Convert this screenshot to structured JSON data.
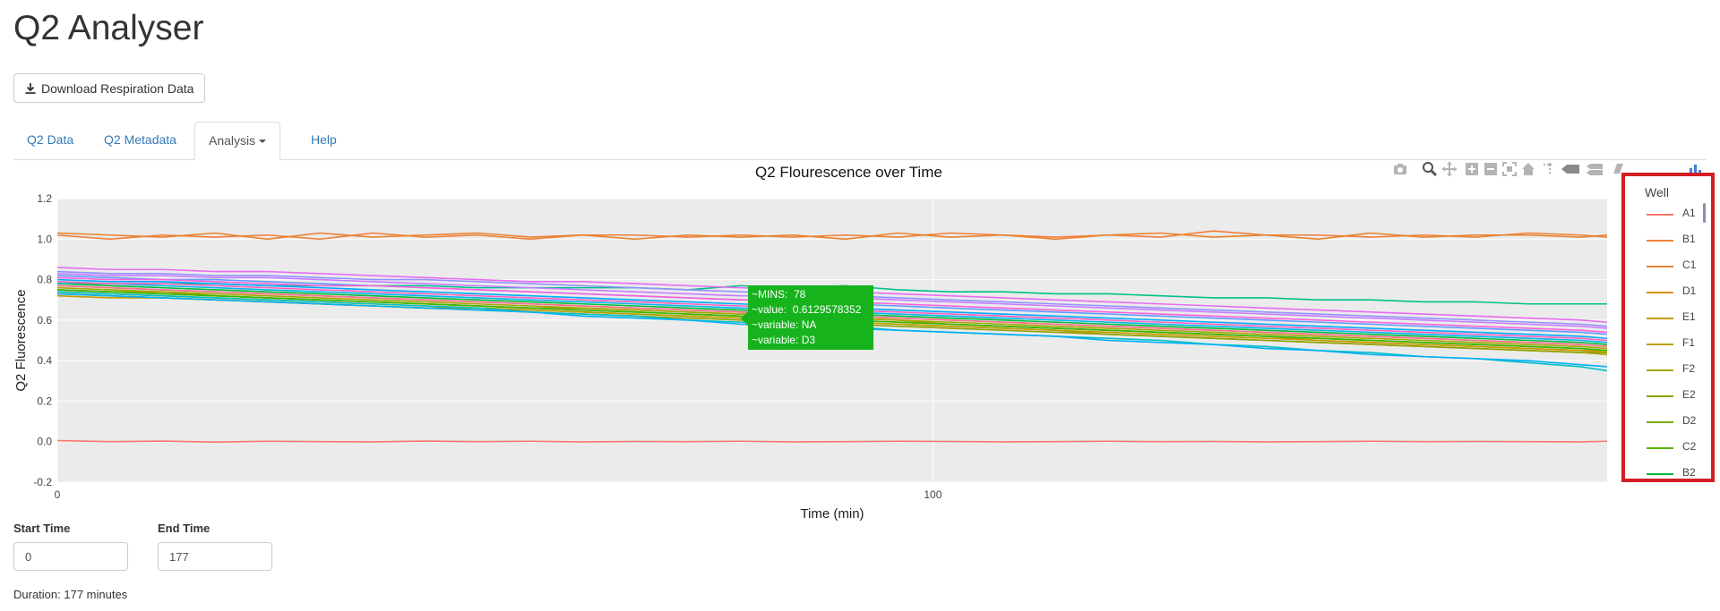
{
  "app": {
    "title": "Q2 Analyser"
  },
  "download_button": {
    "label": "Download Respiration Data",
    "icon": "download-icon"
  },
  "tabs": [
    {
      "label": "Q2 Data",
      "active": false
    },
    {
      "label": "Q2 Metadata",
      "active": false
    },
    {
      "label": "Analysis",
      "active": true,
      "dropdown": true
    },
    {
      "label": "Help",
      "active": false
    }
  ],
  "modebar": [
    "camera-icon",
    "zoom-icon",
    "pan-icon",
    "zoom-in-icon",
    "zoom-out-icon",
    "autoscale-icon",
    "reset-axes-icon",
    "spike-lines-icon",
    "hover-closest-icon",
    "hover-compare-icon",
    "toggle-sidebar-icon",
    "plotly-logo-icon"
  ],
  "chart_data": {
    "type": "line",
    "title": "Q2 Flourescence over Time",
    "xlabel": "Time (min)",
    "ylabel": "Q2 Fluorescence",
    "xlim": [
      0,
      177
    ],
    "ylim": [
      -0.2,
      1.2
    ],
    "x_ticks": [
      "0",
      "100"
    ],
    "y_ticks": [
      "-0.2",
      "0.0",
      "0.2",
      "0.4",
      "0.6",
      "0.8",
      "1.0",
      "1.2"
    ],
    "grid": true,
    "legend_position": "right",
    "legend_title": "Well",
    "x": [
      0,
      6,
      12,
      18,
      24,
      30,
      36,
      42,
      48,
      54,
      60,
      66,
      72,
      78,
      84,
      90,
      96,
      102,
      108,
      114,
      120,
      126,
      132,
      138,
      144,
      150,
      156,
      162,
      168,
      174,
      177
    ],
    "series": [
      {
        "name": "A1",
        "color": "#f8766d",
        "values": [
          0.005,
          0.0,
          0.003,
          -0.002,
          0.002,
          0.0,
          -0.001,
          0.003,
          0.0,
          0.002,
          -0.001,
          0.001,
          0.0,
          0.002,
          -0.001,
          0.0,
          0.002,
          0.001,
          -0.001,
          0.0,
          0.002,
          0.0,
          0.001,
          -0.001,
          0.0,
          0.002,
          0.0,
          0.001,
          0.0,
          -0.001,
          0.002
        ]
      },
      {
        "name": "B1",
        "color": "#f07f3a",
        "values": [
          1.02,
          1.0,
          1.02,
          1.01,
          1.02,
          1.0,
          1.03,
          1.01,
          1.02,
          1.0,
          1.02,
          1.02,
          1.01,
          1.02,
          1.01,
          1.02,
          1.01,
          1.03,
          1.02,
          1.01,
          1.02,
          1.01,
          1.04,
          1.02,
          1.02,
          1.01,
          1.02,
          1.01,
          1.03,
          1.02,
          1.01
        ]
      },
      {
        "name": "C1",
        "color": "#e8822e",
        "values": [
          1.03,
          1.02,
          1.01,
          1.03,
          1.0,
          1.03,
          1.01,
          1.02,
          1.03,
          1.01,
          1.02,
          1.0,
          1.02,
          1.01,
          1.02,
          1.0,
          1.03,
          1.01,
          1.02,
          1.0,
          1.02,
          1.03,
          1.01,
          1.02,
          1.0,
          1.03,
          1.01,
          1.02,
          1.02,
          1.01,
          1.02
        ]
      },
      {
        "name": "D1",
        "color": "#d89000",
        "values": [
          0.75,
          0.74,
          0.74,
          0.72,
          0.71,
          0.7,
          0.69,
          0.68,
          0.67,
          0.66,
          0.66,
          0.65,
          0.64,
          0.63,
          0.62,
          0.61,
          0.6,
          0.58,
          0.57,
          0.56,
          0.55,
          0.54,
          0.53,
          0.52,
          0.5,
          0.49,
          0.48,
          0.47,
          0.46,
          0.45,
          0.44
        ]
      },
      {
        "name": "E1",
        "color": "#c49a00",
        "values": [
          0.72,
          0.71,
          0.71,
          0.7,
          0.69,
          0.68,
          0.67,
          0.66,
          0.66,
          0.65,
          0.64,
          0.63,
          0.62,
          0.61,
          0.6,
          0.59,
          0.58,
          0.57,
          0.56,
          0.55,
          0.54,
          0.53,
          0.52,
          0.51,
          0.5,
          0.49,
          0.48,
          0.47,
          0.46,
          0.45,
          0.45
        ]
      },
      {
        "name": "F1",
        "color": "#b79f00",
        "values": [
          0.74,
          0.73,
          0.72,
          0.71,
          0.7,
          0.69,
          0.68,
          0.67,
          0.66,
          0.65,
          0.64,
          0.63,
          0.62,
          0.61,
          0.6,
          0.59,
          0.58,
          0.57,
          0.56,
          0.55,
          0.53,
          0.52,
          0.51,
          0.5,
          0.49,
          0.48,
          0.47,
          0.46,
          0.45,
          0.44,
          0.43
        ]
      },
      {
        "name": "F2",
        "color": "#a3a500",
        "values": [
          0.76,
          0.75,
          0.74,
          0.73,
          0.72,
          0.71,
          0.7,
          0.69,
          0.68,
          0.67,
          0.66,
          0.65,
          0.64,
          0.63,
          0.62,
          0.61,
          0.6,
          0.59,
          0.58,
          0.57,
          0.56,
          0.55,
          0.54,
          0.53,
          0.52,
          0.51,
          0.5,
          0.49,
          0.48,
          0.47,
          0.46
        ]
      },
      {
        "name": "E2",
        "color": "#8fa100",
        "values": [
          0.73,
          0.72,
          0.71,
          0.7,
          0.69,
          0.68,
          0.67,
          0.66,
          0.65,
          0.64,
          0.63,
          0.62,
          0.61,
          0.6,
          0.59,
          0.58,
          0.57,
          0.56,
          0.55,
          0.54,
          0.53,
          0.52,
          0.51,
          0.5,
          0.49,
          0.48,
          0.47,
          0.46,
          0.45,
          0.44,
          0.44
        ]
      },
      {
        "name": "D2",
        "color": "#7cae00",
        "values": [
          0.77,
          0.76,
          0.75,
          0.74,
          0.73,
          0.72,
          0.71,
          0.7,
          0.69,
          0.68,
          0.67,
          0.66,
          0.65,
          0.64,
          0.63,
          0.62,
          0.61,
          0.6,
          0.59,
          0.58,
          0.57,
          0.56,
          0.55,
          0.54,
          0.53,
          0.52,
          0.51,
          0.5,
          0.49,
          0.48,
          0.47
        ]
      },
      {
        "name": "C2",
        "color": "#5bb300",
        "values": [
          0.75,
          0.74,
          0.73,
          0.72,
          0.71,
          0.7,
          0.69,
          0.68,
          0.67,
          0.66,
          0.65,
          0.64,
          0.63,
          0.62,
          0.61,
          0.6,
          0.59,
          0.58,
          0.57,
          0.56,
          0.55,
          0.54,
          0.53,
          0.52,
          0.51,
          0.5,
          0.49,
          0.48,
          0.47,
          0.46,
          0.45
        ]
      },
      {
        "name": "B2",
        "color": "#00ba38",
        "values": [
          0.78,
          0.77,
          0.76,
          0.75,
          0.74,
          0.73,
          0.72,
          0.71,
          0.7,
          0.69,
          0.68,
          0.67,
          0.66,
          0.65,
          0.64,
          0.63,
          0.62,
          0.61,
          0.6,
          0.59,
          0.58,
          0.57,
          0.56,
          0.55,
          0.54,
          0.53,
          0.52,
          0.51,
          0.5,
          0.49,
          0.48
        ]
      },
      {
        "name": "",
        "color": "#00c08b",
        "values": [
          0.78,
          0.78,
          0.78,
          0.78,
          0.77,
          0.77,
          0.77,
          0.77,
          0.76,
          0.76,
          0.76,
          0.76,
          0.75,
          0.77,
          0.76,
          0.77,
          0.75,
          0.74,
          0.74,
          0.73,
          0.73,
          0.72,
          0.71,
          0.71,
          0.7,
          0.7,
          0.69,
          0.69,
          0.68,
          0.68,
          0.68
        ]
      },
      {
        "name": "",
        "color": "#00bfc4",
        "values": [
          0.74,
          0.73,
          0.72,
          0.71,
          0.7,
          0.69,
          0.68,
          0.67,
          0.66,
          0.64,
          0.63,
          0.62,
          0.6,
          0.59,
          0.58,
          0.57,
          0.55,
          0.54,
          0.53,
          0.52,
          0.51,
          0.5,
          0.48,
          0.47,
          0.45,
          0.44,
          0.42,
          0.41,
          0.39,
          0.37,
          0.35
        ]
      },
      {
        "name": "",
        "color": "#00b4f0",
        "values": [
          0.79,
          0.78,
          0.77,
          0.76,
          0.75,
          0.74,
          0.73,
          0.72,
          0.71,
          0.7,
          0.69,
          0.68,
          0.67,
          0.66,
          0.65,
          0.64,
          0.63,
          0.62,
          0.61,
          0.6,
          0.59,
          0.58,
          0.57,
          0.56,
          0.55,
          0.54,
          0.53,
          0.52,
          0.51,
          0.5,
          0.49
        ]
      },
      {
        "name": "",
        "color": "#00a9ff",
        "values": [
          0.8,
          0.79,
          0.79,
          0.78,
          0.77,
          0.76,
          0.75,
          0.74,
          0.73,
          0.72,
          0.71,
          0.7,
          0.69,
          0.68,
          0.67,
          0.66,
          0.65,
          0.64,
          0.63,
          0.62,
          0.61,
          0.6,
          0.59,
          0.58,
          0.57,
          0.56,
          0.55,
          0.54,
          0.53,
          0.52,
          0.51
        ]
      },
      {
        "name": "",
        "color": "#619cff",
        "values": [
          0.82,
          0.81,
          0.8,
          0.8,
          0.79,
          0.78,
          0.77,
          0.76,
          0.75,
          0.74,
          0.73,
          0.72,
          0.71,
          0.7,
          0.69,
          0.68,
          0.67,
          0.66,
          0.65,
          0.64,
          0.63,
          0.62,
          0.61,
          0.6,
          0.59,
          0.58,
          0.57,
          0.56,
          0.55,
          0.54,
          0.53
        ]
      },
      {
        "name": "",
        "color": "#9590ff",
        "values": [
          0.84,
          0.83,
          0.83,
          0.82,
          0.82,
          0.81,
          0.8,
          0.8,
          0.79,
          0.78,
          0.77,
          0.76,
          0.75,
          0.74,
          0.73,
          0.72,
          0.71,
          0.7,
          0.69,
          0.68,
          0.67,
          0.66,
          0.65,
          0.64,
          0.63,
          0.62,
          0.61,
          0.6,
          0.59,
          0.58,
          0.57
        ]
      },
      {
        "name": "",
        "color": "#c77cff",
        "values": [
          0.83,
          0.82,
          0.82,
          0.81,
          0.81,
          0.8,
          0.79,
          0.78,
          0.77,
          0.76,
          0.75,
          0.74,
          0.73,
          0.72,
          0.72,
          0.71,
          0.7,
          0.69,
          0.68,
          0.67,
          0.66,
          0.65,
          0.64,
          0.63,
          0.62,
          0.61,
          0.6,
          0.59,
          0.58,
          0.57,
          0.56
        ]
      },
      {
        "name": "",
        "color": "#e76bf3",
        "values": [
          0.86,
          0.85,
          0.85,
          0.84,
          0.84,
          0.83,
          0.82,
          0.81,
          0.8,
          0.79,
          0.79,
          0.78,
          0.77,
          0.76,
          0.75,
          0.74,
          0.73,
          0.72,
          0.71,
          0.7,
          0.69,
          0.68,
          0.67,
          0.66,
          0.65,
          0.64,
          0.63,
          0.62,
          0.61,
          0.6,
          0.59
        ]
      },
      {
        "name": "",
        "color": "#fa62db",
        "values": [
          0.81,
          0.8,
          0.8,
          0.79,
          0.78,
          0.77,
          0.77,
          0.76,
          0.75,
          0.74,
          0.73,
          0.72,
          0.71,
          0.7,
          0.7,
          0.69,
          0.68,
          0.67,
          0.66,
          0.65,
          0.64,
          0.63,
          0.62,
          0.61,
          0.6,
          0.59,
          0.58,
          0.57,
          0.56,
          0.55,
          0.54
        ]
      },
      {
        "name": "",
        "color": "#ff62bc",
        "values": [
          0.79,
          0.78,
          0.78,
          0.77,
          0.76,
          0.75,
          0.74,
          0.73,
          0.72,
          0.71,
          0.7,
          0.69,
          0.68,
          0.67,
          0.66,
          0.65,
          0.64,
          0.63,
          0.62,
          0.61,
          0.6,
          0.59,
          0.58,
          0.57,
          0.56,
          0.55,
          0.54,
          0.53,
          0.52,
          0.51,
          0.5
        ]
      },
      {
        "name": "",
        "color": "#ff6c91",
        "values": [
          0.77,
          0.76,
          0.75,
          0.74,
          0.73,
          0.72,
          0.71,
          0.7,
          0.69,
          0.68,
          0.67,
          0.66,
          0.65,
          0.64,
          0.63,
          0.62,
          0.61,
          0.6,
          0.59,
          0.58,
          0.57,
          0.56,
          0.55,
          0.54,
          0.53,
          0.52,
          0.51,
          0.5,
          0.49,
          0.48,
          0.47
        ]
      },
      {
        "name": "",
        "color": "#00b0f6",
        "values": [
          0.73,
          0.72,
          0.71,
          0.7,
          0.69,
          0.68,
          0.67,
          0.66,
          0.65,
          0.64,
          0.62,
          0.61,
          0.6,
          0.58,
          0.57,
          0.56,
          0.55,
          0.54,
          0.53,
          0.52,
          0.5,
          0.49,
          0.48,
          0.46,
          0.45,
          0.43,
          0.42,
          0.41,
          0.4,
          0.38,
          0.37
        ]
      },
      {
        "name": "",
        "color": "#39b600",
        "values": [
          0.75,
          0.74,
          0.73,
          0.72,
          0.71,
          0.7,
          0.69,
          0.68,
          0.67,
          0.66,
          0.65,
          0.64,
          0.63,
          0.62,
          0.61,
          0.6,
          0.59,
          0.58,
          0.57,
          0.56,
          0.55,
          0.54,
          0.53,
          0.52,
          0.51,
          0.5,
          0.49,
          0.48,
          0.47,
          0.46,
          0.45
        ]
      }
    ],
    "tooltip": {
      "text": "~MINS:  78\n~value:  0.6129578352\n~variable: NA\n~variable: D3",
      "x": 78,
      "y": 0.6129578352,
      "color": "#16b31c"
    }
  },
  "inputs": {
    "start_label": "Start Time",
    "start_value": "0",
    "end_label": "End Time",
    "end_value": "177"
  },
  "duration_text": "Duration: 177 minutes"
}
